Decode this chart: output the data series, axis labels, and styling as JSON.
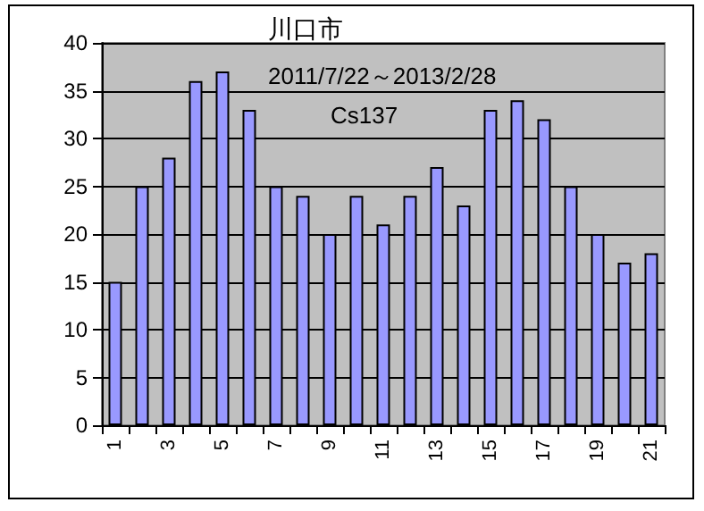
{
  "chart_data": {
    "type": "bar",
    "title": "川口市",
    "subtitle": "2011/7/22～2013/2/28",
    "annotations": [
      "Cs137"
    ],
    "categories": [
      "1",
      null,
      "3",
      null,
      "5",
      null,
      "7",
      null,
      "9",
      null,
      "11",
      null,
      "13",
      null,
      "15",
      null,
      "17",
      null,
      "19",
      null,
      "21"
    ],
    "values": [
      15,
      25,
      28,
      36,
      37,
      33,
      25,
      24,
      20,
      24,
      21,
      24,
      27,
      23,
      33,
      34,
      32,
      25,
      20,
      17,
      18
    ],
    "color": "#9999ff",
    "ylim": [
      0,
      40
    ],
    "yticks": [
      0,
      5,
      10,
      15,
      20,
      25,
      30,
      35,
      40
    ],
    "grid": "y"
  }
}
